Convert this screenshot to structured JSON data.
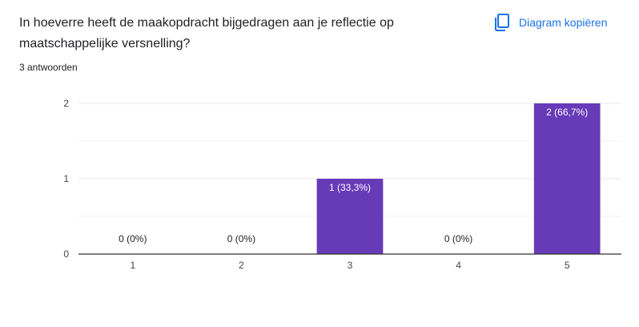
{
  "question": {
    "title": "In hoeverre heeft de maakopdracht bijgedragen aan je reflectie op maatschappelijke versnelling?",
    "response_count": "3 antwoorden"
  },
  "actions": {
    "copy_chart_label": "Diagram kopiëren",
    "copy_icon": "copy-icon"
  },
  "colors": {
    "bar": "#673ab7",
    "accent": "#1a73e8",
    "grid": "#e8e8e8",
    "axis": "#333333"
  },
  "chart_data": {
    "type": "bar",
    "categories": [
      "1",
      "2",
      "3",
      "4",
      "5"
    ],
    "values": [
      0,
      0,
      1,
      0,
      2
    ],
    "data_labels": [
      "0 (0%)",
      "0 (0%)",
      "1 (33,3%)",
      "0 (0%)",
      "2 (66,7%)"
    ],
    "y_ticks": [
      "0",
      "1",
      "2"
    ],
    "ylim": [
      0,
      2
    ],
    "title": "",
    "xlabel": "",
    "ylabel": "",
    "grid": true,
    "minor_grid": true
  }
}
